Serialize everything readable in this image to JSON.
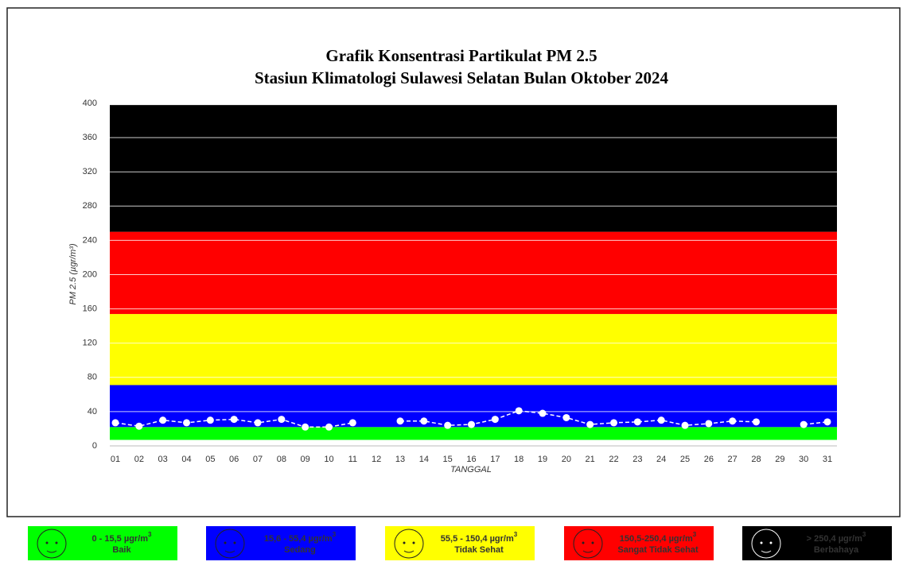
{
  "chart_data": {
    "type": "line",
    "title": "Grafik Konsentrasi Partikulat PM 2.5",
    "subtitle": "Stasiun Klimatologi Sulawesi Selatan Bulan Oktober 2024",
    "y_label": "PM 2.5 (µgr/m³)",
    "x_label": "TANGGAL",
    "categories": [
      "01",
      "02",
      "03",
      "04",
      "05",
      "06",
      "07",
      "08",
      "09",
      "10",
      "11",
      "12",
      "13",
      "14",
      "15",
      "16",
      "17",
      "18",
      "19",
      "20",
      "21",
      "22",
      "23",
      "24",
      "25",
      "26",
      "27",
      "28",
      "29",
      "30",
      "31"
    ],
    "series": [
      {
        "color": "#ffffff",
        "values": [
          27,
          23,
          30,
          27,
          30,
          31,
          27,
          31,
          22,
          22,
          27,
          null,
          29,
          29,
          24,
          25,
          31,
          41,
          38,
          33,
          25,
          27,
          28,
          30,
          24,
          26,
          29,
          28,
          null,
          25,
          28
        ]
      }
    ],
    "ylim": [
      0,
      400
    ],
    "yticks": [
      0,
      40,
      80,
      120,
      160,
      200,
      240,
      280,
      320,
      360,
      400
    ],
    "grid": true,
    "bands": [
      {
        "from": 7,
        "to": 22,
        "color": "#00ff00"
      },
      {
        "from": 22,
        "to": 71,
        "color": "#0000ff"
      },
      {
        "from": 71,
        "to": 154,
        "color": "#ffff00"
      },
      {
        "from": 154,
        "to": 250,
        "color": "#ff0000"
      },
      {
        "from": 250,
        "to": 398,
        "color": "#000000"
      }
    ],
    "legend": [
      {
        "range": "0 - 15,5 µgr/m",
        "sup": "3",
        "label": "Baik",
        "color": "#00ff00",
        "text_color": "#8a8a8a"
      },
      {
        "range": "15,6 - 55,4 µgr/m",
        "sup": "3",
        "label": "Sedang",
        "color": "#0000ff",
        "text_color": "#ffffff"
      },
      {
        "range": "55,5 - 150,4 µgr/m",
        "sup": "3",
        "label": "Tidak Sehat",
        "color": "#ffff00",
        "text_color": "#555555"
      },
      {
        "range": "150,5-250,4 µgr/m",
        "sup": "3",
        "label": "Sangat Tidak Sehat",
        "color": "#ff0000",
        "text_color": "#a00000"
      },
      {
        "range": "> 250,4 µgr/m",
        "sup": "3",
        "label": "Berbahaya",
        "color": "#000000",
        "text_color": "#ffffff"
      }
    ]
  }
}
